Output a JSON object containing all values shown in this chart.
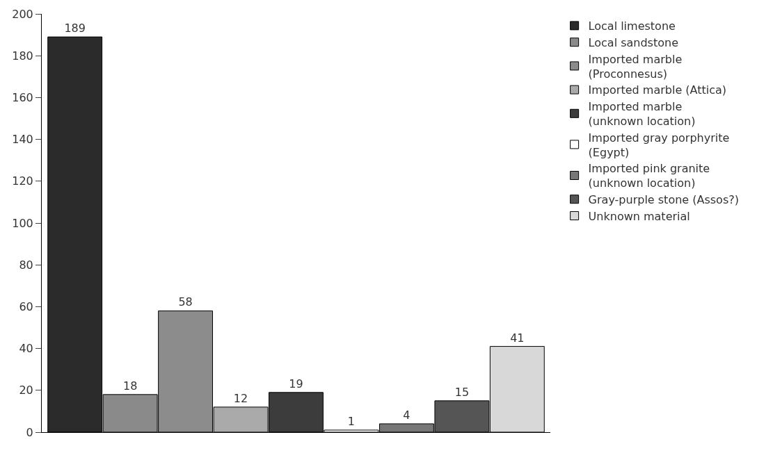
{
  "chart_data": {
    "type": "bar",
    "categories": [
      null,
      null,
      null,
      null,
      null,
      null,
      null,
      null,
      null
    ],
    "series": [
      {
        "name": "Local limestone",
        "color": "#2b2b2b",
        "values": [
          189,
          null,
          null,
          null,
          null,
          null,
          null,
          null,
          null
        ]
      },
      {
        "name": "Local sandstone",
        "color": "#8a8a8a",
        "values": [
          null,
          18,
          null,
          null,
          null,
          null,
          null,
          null,
          null
        ]
      },
      {
        "name": "Imported marble (Proconnesus)",
        "color": "#8c8c8c",
        "values": [
          null,
          null,
          58,
          null,
          null,
          null,
          null,
          null,
          null
        ]
      },
      {
        "name": "Imported marble (Attica)",
        "color": "#aaaaaa",
        "values": [
          null,
          null,
          null,
          12,
          null,
          null,
          null,
          null,
          null
        ]
      },
      {
        "name": "Imported marble (unknown location)",
        "color": "#3c3c3c",
        "values": [
          null,
          null,
          null,
          null,
          19,
          null,
          null,
          null,
          null
        ]
      },
      {
        "name": "Imported gray porphyrite (Egypt)",
        "color": "#ffffff",
        "values": [
          null,
          null,
          null,
          null,
          null,
          1,
          null,
          null,
          null
        ]
      },
      {
        "name": "Imported pink granite (unknown location)",
        "color": "#777777",
        "values": [
          null,
          null,
          null,
          null,
          null,
          null,
          4,
          null,
          null
        ]
      },
      {
        "name": "Gray-purple stone (Assos?)",
        "color": "#555555",
        "values": [
          null,
          null,
          null,
          null,
          null,
          null,
          null,
          15,
          null
        ]
      },
      {
        "name": "Unknown material",
        "color": "#d8d8d8",
        "values": [
          null,
          null,
          null,
          null,
          null,
          null,
          null,
          null,
          41
        ]
      }
    ],
    "ylim": [
      0,
      200
    ],
    "yticks": [
      0,
      20,
      40,
      60,
      80,
      100,
      120,
      140,
      160,
      180,
      200
    ],
    "grid": false,
    "legend": "right",
    "data_labels": true,
    "tick_labels": "y"
  }
}
